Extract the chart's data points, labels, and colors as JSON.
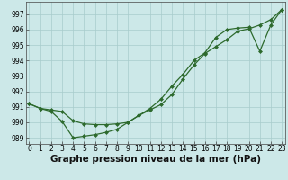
{
  "line1": {
    "x": [
      0,
      1,
      2,
      3,
      4,
      5,
      6,
      7,
      8,
      9,
      10,
      11,
      12,
      13,
      14,
      15,
      16,
      17,
      18,
      19,
      20,
      21,
      22,
      23
    ],
    "y": [
      991.2,
      990.9,
      990.8,
      990.7,
      990.1,
      989.9,
      989.85,
      989.85,
      989.9,
      990.0,
      990.45,
      990.8,
      991.15,
      991.8,
      992.8,
      993.7,
      994.45,
      994.9,
      995.35,
      995.9,
      996.05,
      996.3,
      996.65,
      997.3
    ]
  },
  "line2": {
    "x": [
      0,
      1,
      2,
      3,
      4,
      5,
      6,
      7,
      8,
      9,
      10,
      11,
      12,
      13,
      14,
      15,
      16,
      17,
      18,
      19,
      20,
      21,
      22,
      23
    ],
    "y": [
      991.2,
      990.9,
      990.7,
      990.05,
      989.0,
      989.1,
      989.2,
      989.35,
      989.55,
      990.0,
      990.45,
      990.9,
      991.5,
      992.35,
      993.1,
      994.0,
      994.5,
      995.5,
      996.0,
      996.1,
      996.15,
      994.6,
      996.3,
      997.3
    ]
  },
  "line_color": "#2d6a2d",
  "bg_color": "#cce8e8",
  "grid_color": "#a8cccc",
  "xlabel": "Graphe pression niveau de la mer (hPa)",
  "ylim": [
    988.6,
    997.8
  ],
  "xlim": [
    -0.3,
    23.3
  ],
  "yticks": [
    989,
    990,
    991,
    992,
    993,
    994,
    995,
    996,
    997
  ],
  "xticks": [
    0,
    1,
    2,
    3,
    4,
    5,
    6,
    7,
    8,
    9,
    10,
    11,
    12,
    13,
    14,
    15,
    16,
    17,
    18,
    19,
    20,
    21,
    22,
    23
  ],
  "tick_fontsize": 5.5,
  "xlabel_fontsize": 7.5,
  "marker": "D",
  "markersize": 2.0,
  "linewidth": 0.9
}
